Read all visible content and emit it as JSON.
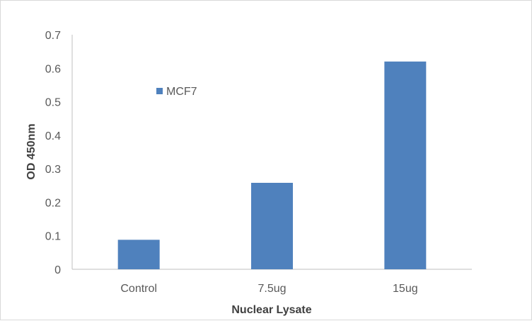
{
  "chart_data": {
    "type": "bar",
    "categories": [
      "Control",
      "7.5ug",
      "15ug"
    ],
    "series": [
      {
        "name": "MCF7",
        "values": [
          0.088,
          0.258,
          0.62
        ],
        "color": "#4f81bd"
      }
    ],
    "xlabel": "Nuclear Lysate",
    "ylabel": "OD 450nm",
    "ylim": [
      0,
      0.7
    ],
    "yticks": [
      "0",
      "0.1",
      "0.2",
      "0.3",
      "0.4",
      "0.5",
      "0.6",
      "0.7"
    ],
    "grid": false,
    "legend_position": "top-left inside plot"
  }
}
